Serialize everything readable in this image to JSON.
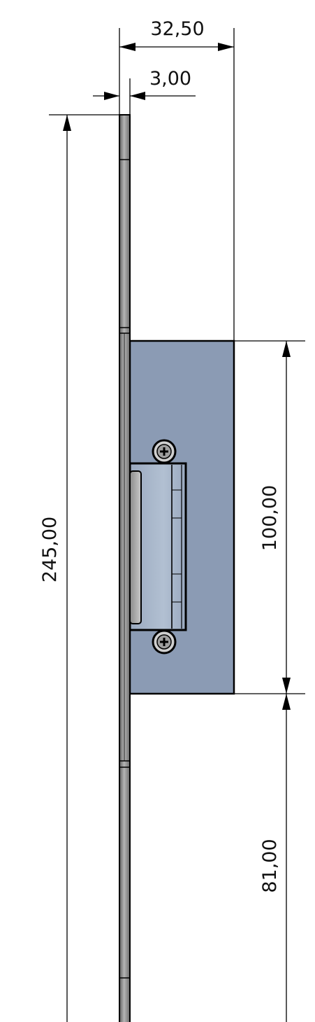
{
  "dimensions": {
    "overall_width": "32,50",
    "plate_thickness": "3,00",
    "overall_height": "245,00",
    "housing_height": "100,00",
    "bottom_offset": "81,00"
  },
  "colors": {
    "housing_fill": "#8b9bb4",
    "housing_inner": "#a4b3c8",
    "plate_fill": "#7a7a7a",
    "line": "#000000"
  }
}
